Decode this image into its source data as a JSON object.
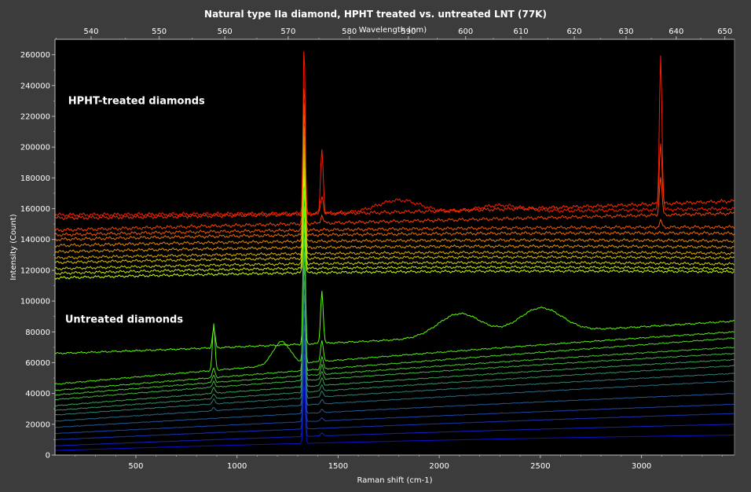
{
  "chart_data": {
    "type": "line",
    "title": "Natural type IIa diamond, HPHT treated vs. untreated LNT (77K)",
    "xlabel": "Raman shift (cm-1)",
    "ylabel": "Intensity (Count)",
    "x2label": "Wavelength (nm)",
    "xlim": [
      100,
      3460
    ],
    "ylim": [
      0,
      270000
    ],
    "x_ticks": [
      500,
      1000,
      1500,
      2000,
      2500,
      3000
    ],
    "y_ticks": [
      0,
      20000,
      40000,
      60000,
      80000,
      100000,
      120000,
      140000,
      160000,
      180000,
      200000,
      220000,
      240000,
      260000
    ],
    "x2_ticks": [
      540,
      550,
      560,
      570,
      580,
      590,
      600,
      610,
      620,
      630,
      640,
      650
    ],
    "x2_laser_nm": 532,
    "annotations": [
      "HPHT-treated diamonds",
      "Untreated diamonds"
    ],
    "background": "#000000",
    "grid": false,
    "groups": [
      {
        "label": "HPHT-treated diamonds",
        "color_range": [
          "#ff1a00",
          "#c8ff00"
        ],
        "spectra": [
          {
            "baseline": [
              156000,
              157000,
              160000
            ],
            "diamond_peak": 271000,
            "features": [
              [
                1420,
                42000
              ],
              [
                1800,
                8000
              ],
              [
                2300,
                4000
              ],
              [
                3095,
                100000
              ]
            ]
          },
          {
            "baseline": [
              154000,
              156000,
              165000
            ],
            "diamond_peak": 245000,
            "features": [
              [
                1420,
                12000
              ],
              [
                3095,
                40000
              ]
            ]
          },
          {
            "baseline": [
              146000,
              152000,
              157000
            ],
            "diamond_peak": 235000,
            "features": [
              [
                1420,
                5000
              ],
              [
                3095,
                25000
              ]
            ]
          },
          {
            "baseline": [
              143000,
              148000,
              148000
            ],
            "diamond_peak": 228000,
            "features": [
              [
                3095,
                4000
              ]
            ]
          },
          {
            "baseline": [
              140000,
              145000,
              144000
            ],
            "diamond_peak": 220000,
            "features": []
          },
          {
            "baseline": [
              136000,
              141000,
              139000
            ],
            "diamond_peak": 214000,
            "features": []
          },
          {
            "baseline": [
              132000,
              137000,
              135000
            ],
            "diamond_peak": 208000,
            "features": []
          },
          {
            "baseline": [
              128000,
              133000,
              131000
            ],
            "diamond_peak": 203000,
            "features": []
          },
          {
            "baseline": [
              125000,
              130000,
              128000
            ],
            "diamond_peak": 198000,
            "features": []
          },
          {
            "baseline": [
              121000,
              127000,
              124000
            ],
            "diamond_peak": 193000,
            "features": []
          },
          {
            "baseline": [
              118000,
              124000,
              121000
            ],
            "diamond_peak": 188000,
            "features": []
          },
          {
            "baseline": [
              115000,
              121000,
              119000
            ],
            "diamond_peak": 184000,
            "features": []
          }
        ]
      },
      {
        "label": "Untreated diamonds",
        "color_range": [
          "#5aff00",
          "#0a10d8"
        ],
        "spectra": [
          {
            "baseline": [
              66000,
              73000,
              87000
            ],
            "diamond_peak": 182000,
            "features": [
              [
                885,
                13000
              ],
              [
                1420,
                34000
              ],
              [
                2100,
                15000
              ],
              [
                2500,
                16000
              ]
            ]
          },
          {
            "baseline": [
              46000,
              66000,
              80000
            ],
            "diamond_peak": 170000,
            "features": [
              [
                885,
                30000
              ],
              [
                1220,
                15000
              ],
              [
                1420,
                14000
              ]
            ]
          },
          {
            "baseline": [
              42000,
              60000,
              76000
            ],
            "diamond_peak": 160000,
            "features": [
              [
                885,
                6000
              ],
              [
                1420,
                8000
              ]
            ]
          },
          {
            "baseline": [
              39000,
              57000,
              70000
            ],
            "diamond_peak": 150000,
            "features": [
              [
                885,
                5000
              ],
              [
                1420,
                6000
              ]
            ]
          },
          {
            "baseline": [
              36000,
              54000,
              66000
            ],
            "diamond_peak": 140000,
            "features": [
              [
                885,
                4000
              ],
              [
                1420,
                5000
              ]
            ]
          },
          {
            "baseline": [
              32000,
              50000,
              62000
            ],
            "diamond_peak": 130000,
            "features": [
              [
                885,
                4000
              ],
              [
                1420,
                5000
              ]
            ]
          },
          {
            "baseline": [
              29000,
              46000,
              58000
            ],
            "diamond_peak": 120000,
            "features": [
              [
                885,
                3000
              ],
              [
                1420,
                4000
              ]
            ]
          },
          {
            "baseline": [
              26000,
              42000,
              53000
            ],
            "diamond_peak": 110000,
            "features": [
              [
                885,
                3000
              ],
              [
                1420,
                4000
              ]
            ]
          },
          {
            "baseline": [
              22000,
              37000,
              48000
            ],
            "diamond_peak": 100000,
            "features": [
              [
                885,
                2000
              ],
              [
                1420,
                3000
              ]
            ]
          },
          {
            "baseline": [
              18000,
              31000,
              40000
            ],
            "diamond_peak": 90000,
            "features": [
              [
                1420,
                2000
              ]
            ]
          },
          {
            "baseline": [
              14000,
              25000,
              33000
            ],
            "diamond_peak": 80000,
            "features": [
              [
                1420,
                2000
              ]
            ]
          },
          {
            "baseline": [
              10000,
              20000,
              27000
            ],
            "diamond_peak": 70000,
            "features": []
          },
          {
            "baseline": [
              6000,
              15000,
              20000
            ],
            "diamond_peak": 60000,
            "features": [
              [
                1420,
                2000
              ]
            ]
          },
          {
            "baseline": [
              3000,
              10000,
              13000
            ],
            "diamond_peak": 48000,
            "features": []
          }
        ]
      }
    ]
  }
}
